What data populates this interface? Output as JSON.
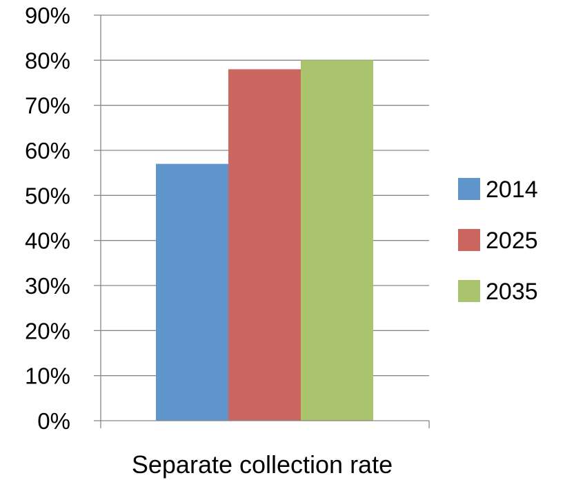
{
  "chart_data": {
    "type": "bar",
    "title": "",
    "xlabel": "",
    "ylabel": "",
    "categories": [
      "Separate collection rate"
    ],
    "series": [
      {
        "name": "2014",
        "values": [
          0.57
        ],
        "color": "#6096CC"
      },
      {
        "name": "2025",
        "values": [
          0.78
        ],
        "color": "#CC6660"
      },
      {
        "name": "2035",
        "values": [
          0.8
        ],
        "color": "#A9C46C"
      }
    ],
    "ylim": [
      0,
      0.9
    ],
    "yticks": [
      {
        "value": 0.0,
        "label": "0%"
      },
      {
        "value": 0.1,
        "label": "10%"
      },
      {
        "value": 0.2,
        "label": "20%"
      },
      {
        "value": 0.3,
        "label": "30%"
      },
      {
        "value": 0.4,
        "label": "40%"
      },
      {
        "value": 0.5,
        "label": "50%"
      },
      {
        "value": 0.6,
        "label": "60%"
      },
      {
        "value": 0.7,
        "label": "70%"
      },
      {
        "value": 0.8,
        "label": "80%"
      },
      {
        "value": 0.9,
        "label": "90%"
      }
    ],
    "grid": true,
    "legend": "right"
  }
}
